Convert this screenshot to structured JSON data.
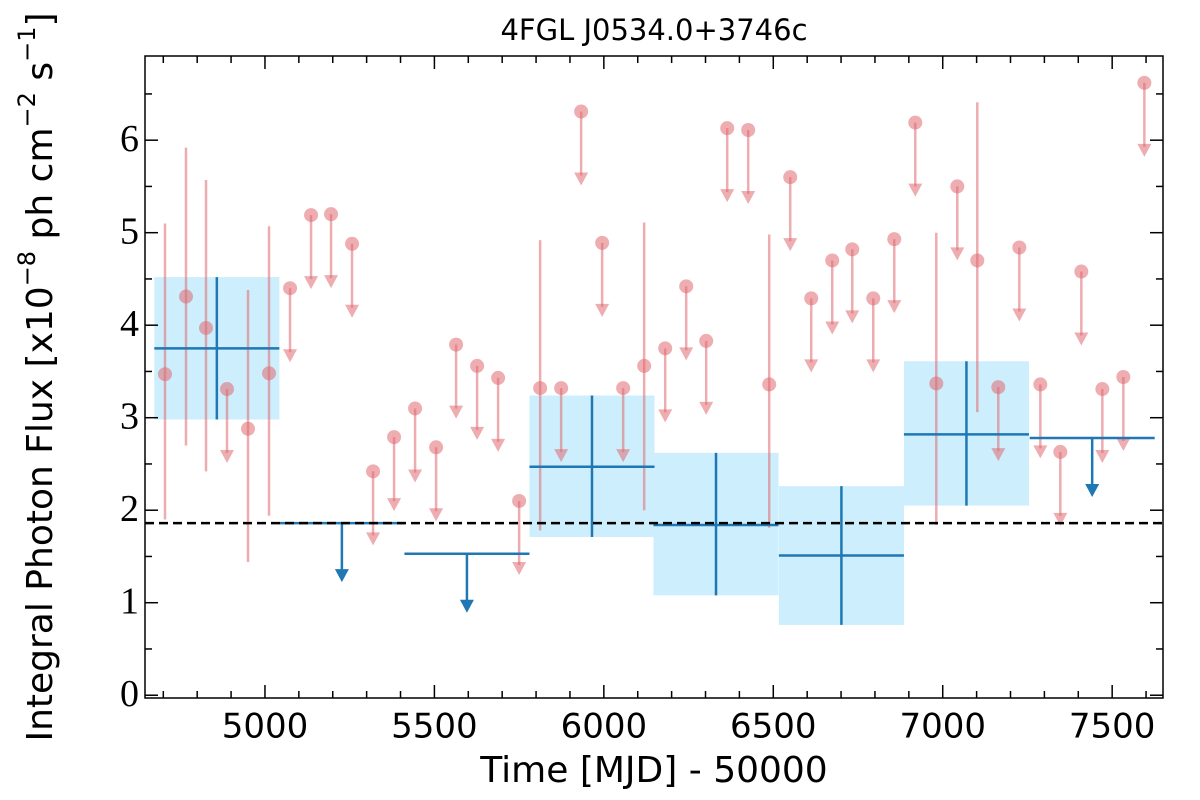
{
  "chart_data": {
    "type": "errorbar",
    "title": "4FGL J0534.0+3746c",
    "xlabel": "Time [MJD] - 50000",
    "ylabel": [
      "Integral Photon Flux [x10",
      "−8",
      " ph cm",
      "−2",
      " s",
      "−1",
      "]"
    ],
    "xlim": [
      4646,
      7650
    ],
    "ylim": [
      -0.03,
      6.91
    ],
    "xticks": [
      5000,
      5500,
      6000,
      6500,
      7000,
      7500
    ],
    "xticks_minor": [
      4700,
      4800,
      4900,
      5100,
      5200,
      5300,
      5400,
      5600,
      5700,
      5800,
      5900,
      6100,
      6200,
      6300,
      6400,
      6600,
      6700,
      6800,
      6900,
      7100,
      7200,
      7300,
      7400,
      7600
    ],
    "yticks": [
      0,
      1,
      2,
      3,
      4,
      5,
      6
    ],
    "yticks_minor": [
      0.5,
      1.5,
      2.5,
      3.5,
      4.5,
      5.5,
      6.5
    ],
    "hline": 1.86,
    "hline_color": "#000000",
    "series": [
      {
        "color": "#e06a70",
        "x": [
          4705,
          4767,
          4826,
          4888,
          4950,
          5012,
          5074,
          5136,
          5195,
          5257,
          5319,
          5381,
          5443,
          5505,
          5564,
          5626,
          5688,
          5750,
          5812,
          5874,
          5933,
          5995,
          6057,
          6119,
          6181,
          6243,
          6302,
          6364,
          6426,
          6488,
          6550,
          6612,
          6674,
          6733,
          6795,
          6857,
          6919,
          6981,
          7043,
          7102,
          7164,
          7226,
          7288,
          7347,
          7409,
          7471,
          7533,
          7595
        ],
        "values": [
          3.47,
          4.31,
          3.97,
          3.31,
          2.88,
          3.48,
          4.4,
          5.19,
          5.2,
          4.88,
          2.42,
          2.79,
          3.1,
          2.68,
          3.79,
          3.56,
          3.43,
          2.1,
          3.32,
          3.32,
          6.31,
          4.89,
          3.32,
          3.56,
          3.75,
          4.42,
          3.83,
          6.13,
          6.11,
          3.36,
          5.6,
          4.29,
          4.7,
          4.82,
          4.29,
          4.93,
          6.19,
          3.37,
          5.5,
          4.7,
          3.33,
          4.84,
          3.36,
          2.63,
          4.58,
          3.31,
          3.44,
          6.62
        ],
        "yerr_low": [
          1.57,
          1.61,
          1.55,
          null,
          1.44,
          1.54,
          null,
          null,
          null,
          null,
          null,
          null,
          null,
          null,
          null,
          null,
          null,
          null,
          1.54,
          null,
          null,
          null,
          null,
          1.56,
          null,
          null,
          null,
          null,
          null,
          1.55,
          null,
          null,
          null,
          null,
          null,
          null,
          null,
          1.53,
          null,
          1.64,
          null,
          null,
          null,
          null,
          null,
          null,
          null,
          null
        ],
        "yerr_high": [
          1.63,
          1.61,
          1.6,
          null,
          1.5,
          1.59,
          null,
          null,
          null,
          null,
          null,
          null,
          null,
          null,
          null,
          null,
          null,
          null,
          1.6,
          null,
          null,
          null,
          null,
          1.55,
          null,
          null,
          null,
          null,
          null,
          1.62,
          null,
          null,
          null,
          null,
          null,
          null,
          null,
          1.63,
          null,
          1.71,
          null,
          null,
          null,
          null,
          null,
          null,
          null,
          null
        ],
        "upper_limit": [
          false,
          false,
          false,
          true,
          false,
          false,
          true,
          true,
          true,
          true,
          true,
          true,
          true,
          true,
          true,
          true,
          true,
          true,
          false,
          true,
          true,
          true,
          true,
          false,
          true,
          true,
          true,
          true,
          true,
          false,
          true,
          true,
          true,
          true,
          true,
          true,
          true,
          false,
          true,
          false,
          true,
          true,
          true,
          true,
          true,
          true,
          true,
          true
        ]
      },
      {
        "color": "#1f77b4",
        "band_color": "#cdeefc",
        "xerr": 184.5,
        "x": [
          4858,
          5227,
          5596,
          5965,
          6331,
          6701,
          7070,
          7441
        ],
        "values": [
          3.75,
          1.86,
          1.53,
          2.47,
          1.84,
          1.51,
          2.82,
          2.78
        ],
        "yerr_low": [
          0.77,
          null,
          null,
          0.76,
          0.76,
          0.75,
          0.77,
          null
        ],
        "yerr_high": [
          0.77,
          null,
          null,
          0.77,
          0.78,
          0.75,
          0.79,
          null
        ],
        "upper_limit": [
          false,
          true,
          true,
          false,
          false,
          false,
          false,
          true
        ]
      }
    ]
  }
}
